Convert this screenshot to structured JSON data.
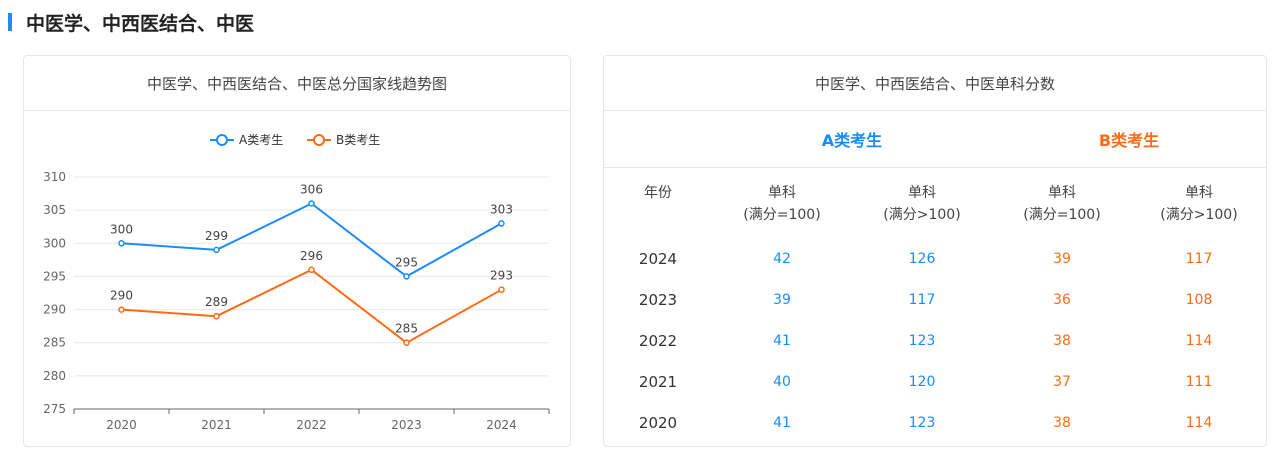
{
  "section": {
    "title": "中医学、中西医结合、中医"
  },
  "left_card": {
    "title": "中医学、中西医结合、中医总分国家线趋势图"
  },
  "right_card": {
    "title": "中医学、中西医结合、中医单科分数",
    "group_a": "A类考生",
    "group_b": "B类考生",
    "col_year": "年份",
    "col_a1": [
      "单科",
      "(满分=100)"
    ],
    "col_a2": [
      "单科",
      "(满分>100)"
    ],
    "col_b1": [
      "单科",
      "(满分=100)"
    ],
    "col_b2": [
      "单科",
      "(满分>100)"
    ],
    "rows": [
      {
        "year": "2024",
        "a1": "42",
        "a2": "126",
        "b1": "39",
        "b2": "117"
      },
      {
        "year": "2023",
        "a1": "39",
        "a2": "117",
        "b1": "36",
        "b2": "108"
      },
      {
        "year": "2022",
        "a1": "41",
        "a2": "123",
        "b1": "38",
        "b2": "114"
      },
      {
        "year": "2021",
        "a1": "40",
        "a2": "120",
        "b1": "37",
        "b2": "111"
      },
      {
        "year": "2020",
        "a1": "41",
        "a2": "123",
        "b1": "38",
        "b2": "114"
      }
    ]
  },
  "chart_data": {
    "type": "line",
    "title": "中医学、中西医结合、中医总分国家线趋势图",
    "x": [
      "2020",
      "2021",
      "2022",
      "2023",
      "2024"
    ],
    "ylim": [
      275,
      310
    ],
    "yticks": [
      275,
      280,
      285,
      290,
      295,
      300,
      305,
      310
    ],
    "grid": true,
    "legend_position": "top-center",
    "series": [
      {
        "name": "A类考生",
        "color": "#1a8cff",
        "values": [
          300,
          299,
          306,
          295,
          303
        ]
      },
      {
        "name": "B类考生",
        "color": "#ff6a13",
        "values": [
          290,
          289,
          296,
          285,
          293
        ]
      }
    ]
  }
}
